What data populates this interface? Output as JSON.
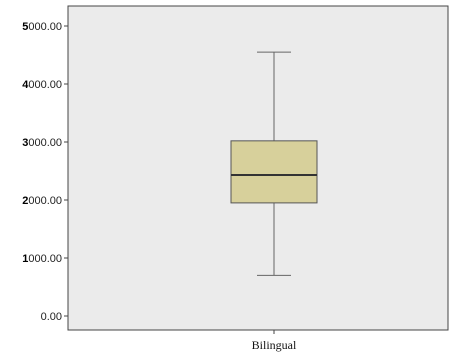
{
  "chart_data": {
    "type": "boxplot",
    "categories": [
      "Bilingual"
    ],
    "boxes": [
      {
        "category": "Bilingual",
        "whisker_low": 700,
        "q1": 1950,
        "median": 2430,
        "q3": 3020,
        "whisker_high": 4550
      }
    ],
    "ylim": [
      0,
      5000
    ],
    "yticks": [
      0,
      1000,
      2000,
      3000,
      4000,
      5000
    ],
    "ytick_labels": [
      "0.00",
      "1000.00",
      "2000.00",
      "3000.00",
      "4000.00",
      "5000.00"
    ],
    "xlabel": "",
    "ylabel": "",
    "title": "",
    "grid": false,
    "colors": {
      "plot_background": "#ebebeb",
      "box_fill": "#d7d09b",
      "box_stroke": "#555555",
      "median_line": "#333333",
      "whisker": "#666666",
      "axis": "#444444"
    }
  }
}
